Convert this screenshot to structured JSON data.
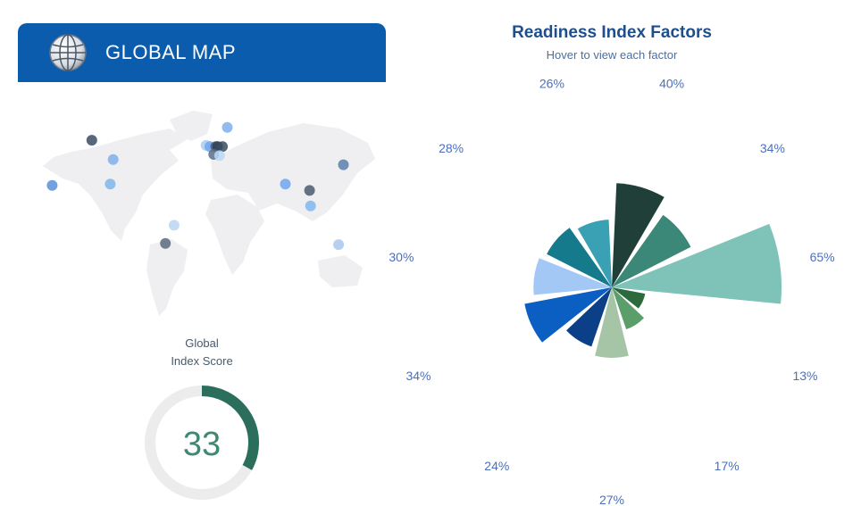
{
  "header": {
    "title": "GLOBAL MAP",
    "bg_color": "#0b5cad",
    "icon": "globe-icon"
  },
  "map": {
    "points": [
      {
        "lon": -163,
        "lat": 21,
        "color": "#5b8fdc"
      },
      {
        "lon": -122,
        "lat": 56,
        "color": "#3a4e66"
      },
      {
        "lon": -100,
        "lat": 41,
        "color": "#7fb0ec"
      },
      {
        "lon": -103,
        "lat": 22,
        "color": "#7fb6ea"
      },
      {
        "lon": -46,
        "lat": -24,
        "color": "#5a6a7e"
      },
      {
        "lon": -37,
        "lat": -10,
        "color": "#b9d5f3"
      },
      {
        "lon": -4,
        "lat": 52,
        "color": "#a9cdf3"
      },
      {
        "lon": 0,
        "lat": 51,
        "color": "#6fa6ec"
      },
      {
        "lon": 6,
        "lat": 51,
        "color": "#4a5e78"
      },
      {
        "lon": 8,
        "lat": 51,
        "color": "#2f3f54"
      },
      {
        "lon": 13,
        "lat": 51,
        "color": "#3a4c62"
      },
      {
        "lon": 4,
        "lat": 45,
        "color": "#5a6e88"
      },
      {
        "lon": 10,
        "lat": 44,
        "color": "#b8d8f4"
      },
      {
        "lon": 18,
        "lat": 66,
        "color": "#7fb0ec"
      },
      {
        "lon": 78,
        "lat": 22,
        "color": "#6fa6ec"
      },
      {
        "lon": 103,
        "lat": 17,
        "color": "#4a5a6e"
      },
      {
        "lon": 104,
        "lat": 5,
        "color": "#7fb6f0"
      },
      {
        "lon": 138,
        "lat": 37,
        "color": "#5b7fae"
      },
      {
        "lon": 133,
        "lat": -25,
        "color": "#a9c8ee"
      }
    ]
  },
  "score": {
    "label_line1": "Global",
    "label_line2": "Index Score",
    "value": "33",
    "fraction": 0.33,
    "track_color": "#ececec",
    "fill_color": "#2c6e5c",
    "text_color": "#3e8874"
  },
  "chart_data": {
    "type": "rose",
    "title": "Readiness Index Factors",
    "subtitle": "Hover to view each factor",
    "unit": "%",
    "factors": [
      {
        "value": 40,
        "label": "40%",
        "color": "#1f3f38"
      },
      {
        "value": 34,
        "label": "34%",
        "color": "#3c8878"
      },
      {
        "value": 65,
        "label": "65%",
        "color": "#7ec2b8"
      },
      {
        "value": 13,
        "label": "13%",
        "color": "#2c6a3e"
      },
      {
        "value": 17,
        "label": "17%",
        "color": "#5c9e6a"
      },
      {
        "value": 27,
        "label": "27%",
        "color": "#a6c4a6"
      },
      {
        "value": 24,
        "label": "24%",
        "color": "#0b3f88"
      },
      {
        "value": 34,
        "label": "34%",
        "color": "#0b5ec2"
      },
      {
        "value": 30,
        "label": "30%",
        "color": "#a3c8f6"
      },
      {
        "value": 28,
        "label": "28%",
        "color": "#147a8c"
      },
      {
        "value": 26,
        "label": "26%",
        "color": "#3aa0b4"
      }
    ],
    "label_color": "#4a6fc0"
  }
}
